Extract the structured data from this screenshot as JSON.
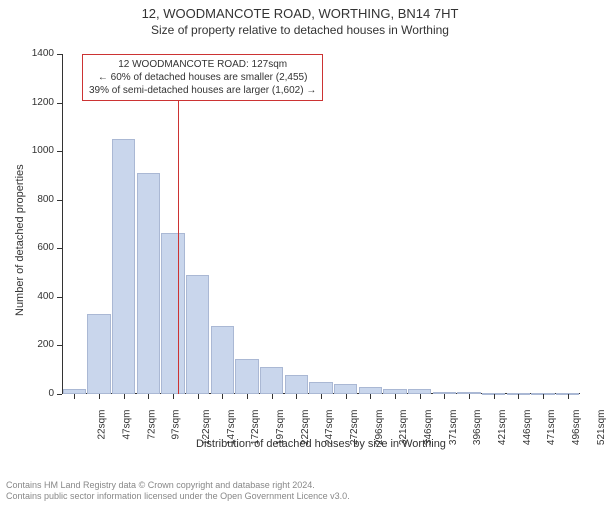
{
  "title": "12, WOODMANCOTE ROAD, WORTHING, BN14 7HT",
  "subtitle": "Size of property relative to detached houses in Worthing",
  "y_axis_label": "Number of detached properties",
  "x_axis_title": "Distribution of detached houses by size in Worthing",
  "footer_line1": "Contains HM Land Registry data © Crown copyright and database right 2024.",
  "footer_line2": "Contains public sector information licensed under the Open Government Licence v3.0.",
  "info_box": {
    "line1": "12 WOODMANCOTE ROAD: 127sqm",
    "line2": "← 60% of detached houses are smaller (2,455)",
    "line3": "39% of semi-detached houses are larger (1,602) →"
  },
  "chart": {
    "type": "histogram",
    "marker_x_value": 127,
    "marker_color": "#cc3333",
    "bar_fill": "#c9d6ec",
    "bar_border": "#aab8d4",
    "background_color": "#ffffff",
    "axis_color": "#333333",
    "ylim": [
      0,
      1400
    ],
    "ytick_step": 200,
    "y_ticks": [
      0,
      200,
      400,
      600,
      800,
      1000,
      1200,
      1400
    ],
    "x_tick_labels": [
      "22sqm",
      "47sqm",
      "72sqm",
      "97sqm",
      "122sqm",
      "147sqm",
      "172sqm",
      "197sqm",
      "222sqm",
      "247sqm",
      "272sqm",
      "296sqm",
      "321sqm",
      "346sqm",
      "371sqm",
      "396sqm",
      "421sqm",
      "446sqm",
      "471sqm",
      "496sqm",
      "521sqm"
    ],
    "x_tick_values": [
      22,
      47,
      72,
      97,
      122,
      147,
      172,
      197,
      222,
      247,
      272,
      296,
      321,
      346,
      371,
      396,
      421,
      446,
      471,
      496,
      521
    ],
    "values": [
      20,
      330,
      1050,
      910,
      665,
      490,
      280,
      145,
      110,
      80,
      50,
      40,
      30,
      20,
      20,
      10,
      10,
      5,
      5,
      5,
      5
    ],
    "bar_width_ratio": 0.95,
    "title_fontsize": 13,
    "subtitle_fontsize": 12,
    "label_fontsize": 11,
    "tick_fontsize": 10,
    "info_fontsize": 10
  }
}
